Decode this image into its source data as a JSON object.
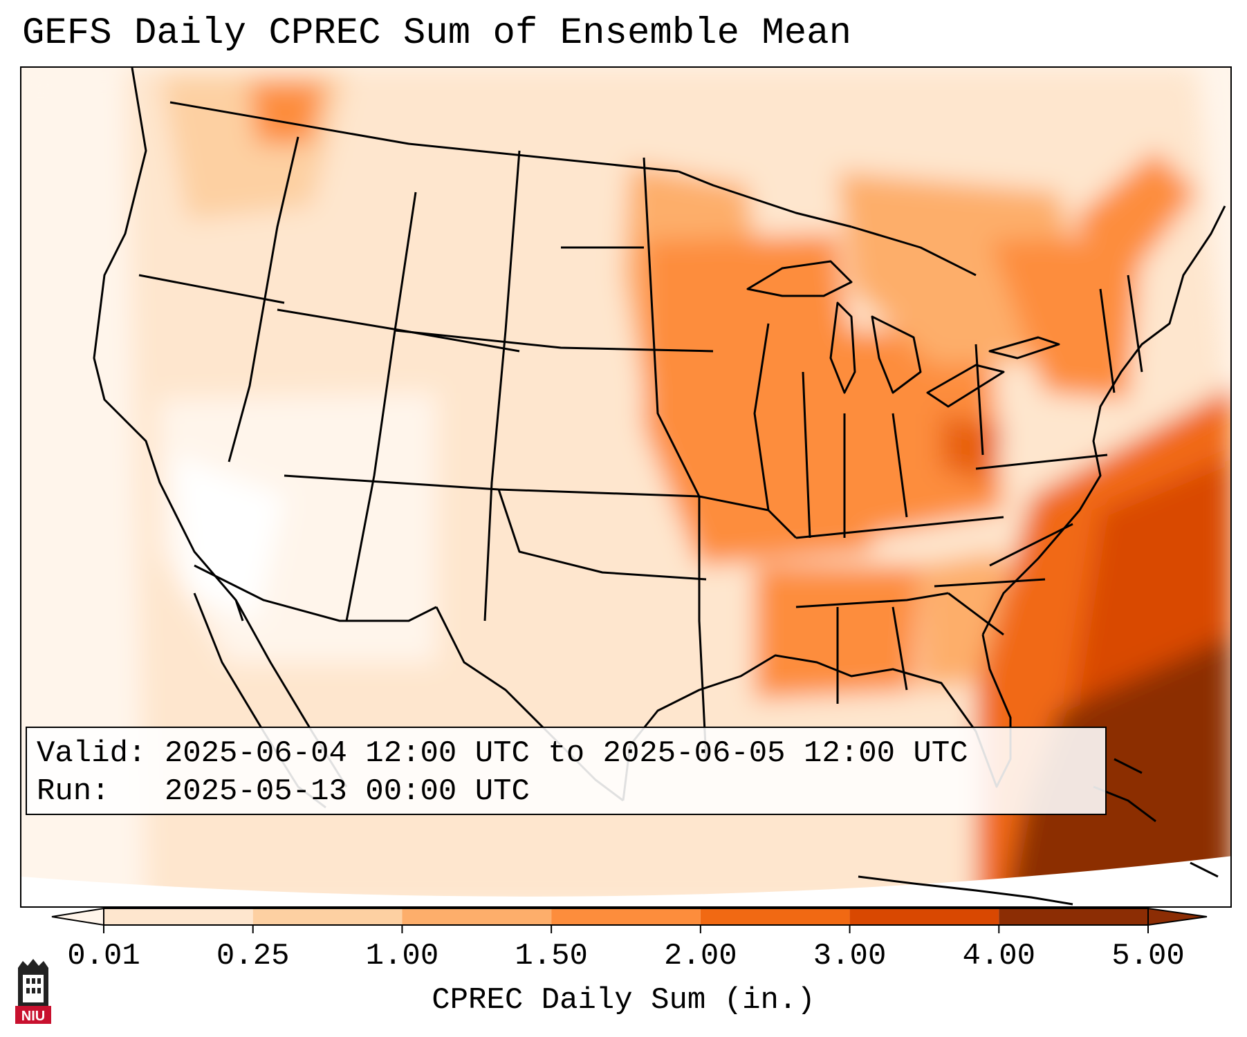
{
  "title": "GEFS Daily CPREC Sum of Ensemble Mean",
  "info": {
    "valid_label": "Valid:",
    "valid_value": "2025-06-04 12:00 UTC to 2025-06-05 12:00 UTC",
    "run_label": "Run:",
    "run_value": "2025-05-13 00:00 UTC"
  },
  "colorbar": {
    "label": "CPREC Daily Sum (in.)",
    "ticks": [
      "0.01",
      "0.25",
      "1.00",
      "1.50",
      "2.00",
      "3.00",
      "4.00",
      "5.00"
    ],
    "colors": [
      "#fff5eb",
      "#fee6ce",
      "#fdd0a2",
      "#fdae6b",
      "#fd8d3c",
      "#f16913",
      "#d94801",
      "#8c2d04"
    ],
    "extend": "both"
  },
  "logo": {
    "text": "NIU"
  }
}
